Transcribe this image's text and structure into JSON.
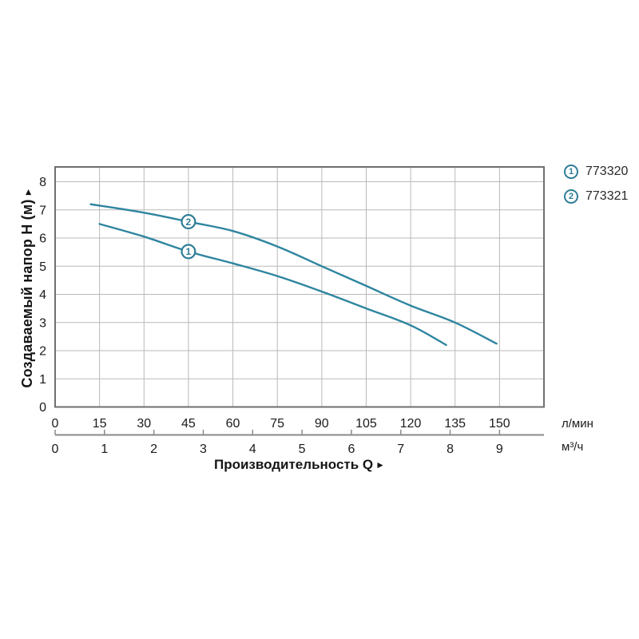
{
  "page": {
    "background": "#ffffff"
  },
  "chart": {
    "y_title": "Создаваемый напор H (м)",
    "y_title_arrow": "►",
    "x_title": "Производительность Q",
    "x_title_arrow": "►",
    "unit_primary": "л/мин",
    "unit_secondary": "м³/ч",
    "legend": [
      {
        "marker": "1",
        "code": "773320"
      },
      {
        "marker": "2",
        "code": "773321"
      }
    ],
    "colors": {
      "curve": "#2e85a0",
      "marker_ring": "#2e7d96",
      "grid": "#b9b9b9",
      "border": "#6f6f6f",
      "axis2": "#8a8a8a",
      "text": "#1b1b1b"
    }
  },
  "chart_data": {
    "type": "line",
    "title": "",
    "xlabel": "Производительность Q",
    "ylabel": "Создаваемый напор H (м)",
    "grid": true,
    "legend_position": "top-right",
    "x_axes": [
      {
        "unit": "л/мин",
        "ticks": [
          0,
          15,
          30,
          45,
          60,
          75,
          90,
          105,
          120,
          135,
          150
        ],
        "range": [
          0,
          165
        ]
      },
      {
        "unit": "м³/ч",
        "ticks": [
          0,
          1,
          2,
          3,
          4,
          5,
          6,
          7,
          8,
          9
        ],
        "range": [
          0,
          9.9
        ]
      }
    ],
    "y_axis": {
      "ticks": [
        0,
        1,
        2,
        3,
        4,
        5,
        6,
        7,
        8
      ],
      "range": [
        0,
        8.5
      ]
    },
    "series": [
      {
        "name": "773320",
        "marker_label": "1",
        "x_unit": "л/мин",
        "points": [
          [
            15,
            6.5
          ],
          [
            30,
            6.05
          ],
          [
            45,
            5.52
          ],
          [
            60,
            5.1
          ],
          [
            75,
            4.65
          ],
          [
            90,
            4.1
          ],
          [
            105,
            3.5
          ],
          [
            120,
            2.9
          ],
          [
            132,
            2.2
          ]
        ],
        "marker_at": [
          45,
          5.52
        ]
      },
      {
        "name": "773321",
        "marker_label": "2",
        "x_unit": "л/мин",
        "points": [
          [
            12,
            7.2
          ],
          [
            30,
            6.9
          ],
          [
            45,
            6.58
          ],
          [
            60,
            6.25
          ],
          [
            75,
            5.7
          ],
          [
            90,
            5.0
          ],
          [
            105,
            4.3
          ],
          [
            120,
            3.6
          ],
          [
            135,
            3.0
          ],
          [
            149,
            2.25
          ]
        ],
        "marker_at": [
          45,
          6.58
        ]
      }
    ]
  }
}
